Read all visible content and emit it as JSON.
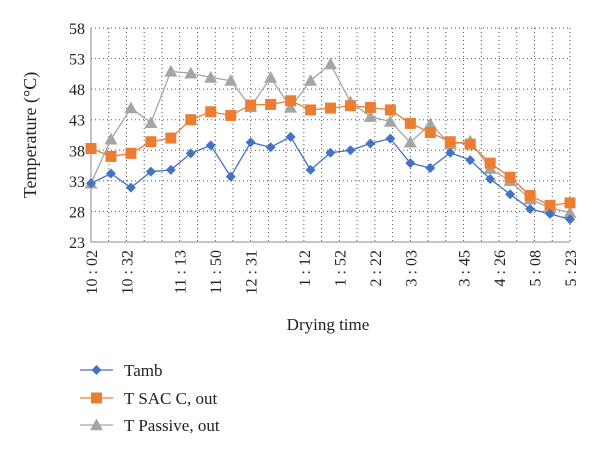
{
  "chart_data": {
    "type": "line",
    "xlabel": "Drying time",
    "ylabel": "Temperature (°C)",
    "ylim": [
      23,
      58
    ],
    "yticks": [
      23,
      28,
      33,
      38,
      43,
      48,
      53,
      58
    ],
    "grid": "dotted-both",
    "legend_position": "bottom-left",
    "x_tick_labels": [
      {
        "index": 0,
        "label": "10 : 02"
      },
      {
        "index": 2,
        "label": "10 : 32"
      },
      {
        "index": 5,
        "label": "11 : 13"
      },
      {
        "index": 7,
        "label": "11 : 50"
      },
      {
        "index": 9,
        "label": "12 : 31"
      },
      {
        "index": 12,
        "label": "1 : 12"
      },
      {
        "index": 14,
        "label": "1 : 52"
      },
      {
        "index": 16,
        "label": "2 : 22"
      },
      {
        "index": 18,
        "label": "3 : 03"
      },
      {
        "index": 21,
        "label": "3 : 45"
      },
      {
        "index": 23,
        "label": "4 : 26"
      },
      {
        "index": 25,
        "label": "5 : 08"
      },
      {
        "index": 27,
        "label": "5 : 23"
      }
    ],
    "series": [
      {
        "name": "Tamb",
        "color": "#4472C4",
        "marker": "diamond",
        "values": [
          32.6,
          34.2,
          31.9,
          34.5,
          34.8,
          37.5,
          38.8,
          33.7,
          39.3,
          38.5,
          40.2,
          34.8,
          37.6,
          38.0,
          39.1,
          39.9,
          35.9,
          35.1,
          37.6,
          36.4,
          33.3,
          30.8,
          28.4,
          27.6,
          26.7
        ]
      },
      {
        "name": "T SAC C, out",
        "color": "#ED7D31",
        "marker": "square",
        "values": [
          38.3,
          37.0,
          37.5,
          39.4,
          40.0,
          43.0,
          44.3,
          43.7,
          45.4,
          45.5,
          46.1,
          44.6,
          44.9,
          45.3,
          45.0,
          44.6,
          42.4,
          40.9,
          39.4,
          39.0,
          35.9,
          33.6,
          30.6,
          29.0,
          29.4
        ]
      },
      {
        "name": "T Passive, out",
        "color": "#A5A5A5",
        "marker": "triangle",
        "values": [
          32.6,
          39.8,
          44.9,
          42.5,
          50.9,
          50.6,
          49.9,
          49.4,
          45.1,
          49.9,
          45.0,
          49.4,
          52.1,
          45.9,
          43.5,
          42.7,
          39.3,
          42.3,
          39.0,
          39.5,
          35.0,
          33.0,
          30.0,
          28.6,
          27.8
        ]
      }
    ]
  }
}
